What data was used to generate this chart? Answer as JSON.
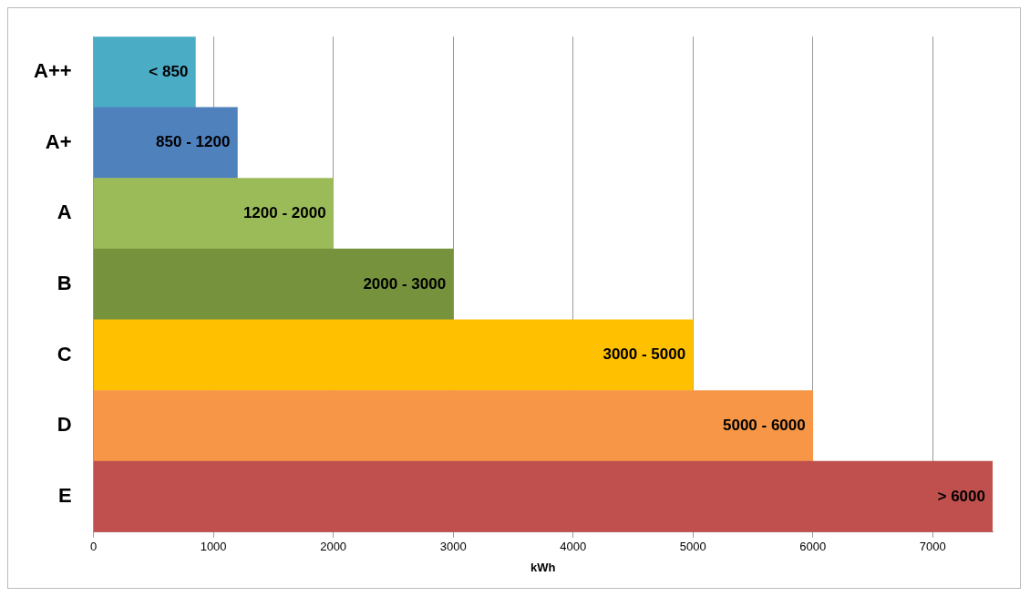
{
  "chart_data": {
    "type": "bar",
    "orientation": "horizontal",
    "xlabel": "kWh",
    "categories": [
      "A++",
      "A+",
      "A",
      "B",
      "C",
      "D",
      "E"
    ],
    "values": [
      850,
      1200,
      2000,
      3000,
      5000,
      6000,
      7500
    ],
    "colors": [
      "#4bacc6",
      "#4f81bd",
      "#9bbb59",
      "#76923c",
      "#ffc000",
      "#f79646",
      "#c0504d"
    ],
    "annotations": [
      {
        "text": "< 850",
        "x": 850,
        "y": "A++"
      },
      {
        "text": "850 - 1200",
        "x": 1200,
        "y": "A+"
      },
      {
        "text": "1200 - 2000",
        "x": 2000,
        "y": "A"
      },
      {
        "text": "2000 - 3000",
        "x": 3000,
        "y": "B"
      },
      {
        "text": "3000 - 5000",
        "x": 5000,
        "y": "C"
      },
      {
        "text": "5000 - 6000",
        "x": 6000,
        "y": "D"
      },
      {
        "text": "> 6000",
        "x": 7500,
        "y": "E"
      }
    ],
    "xlim": [
      0,
      7500
    ],
    "xticks": [
      0,
      1000,
      2000,
      3000,
      4000,
      5000,
      6000,
      7000
    ],
    "grid": "x",
    "legend": false
  }
}
